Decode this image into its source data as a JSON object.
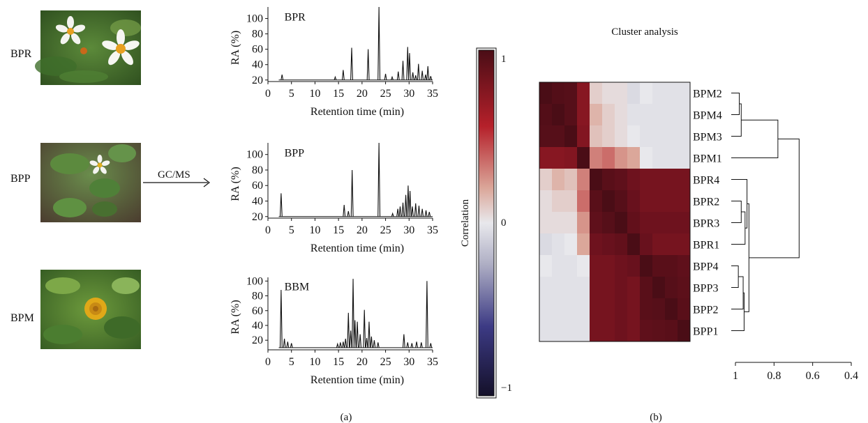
{
  "panel_a": {
    "label": "(a)",
    "samples": [
      {
        "name": "BPR",
        "photo": "white-daisy-flower-photo",
        "center_color": "#e8a020"
      },
      {
        "name": "BPP",
        "photo": "white-flower-leaves-photo",
        "center_color": "#e0b020"
      },
      {
        "name": "BPM",
        "photo": "yellow-flower-photo",
        "center_color": "#e0a818"
      }
    ],
    "arrow_label": "GC/MS"
  },
  "panel_b": {
    "label": "(b)",
    "title": "Cluster analysis",
    "colorbar_label": "Correlation",
    "colorbar_ticks": [
      "1",
      "0",
      "−1"
    ],
    "colors": {
      "high": "#5a0f1a",
      "mid": "#e8e8ec",
      "low": "#1b1535"
    }
  },
  "chart_data": [
    {
      "type": "line",
      "annotation": "BPR",
      "xlabel": "Retention time (min)",
      "ylabel": "RA (%)",
      "xlim": [
        0,
        35
      ],
      "ylim": [
        18,
        115
      ],
      "xticks": [
        0,
        5,
        10,
        15,
        20,
        25,
        30,
        35
      ],
      "yticks": [
        20,
        40,
        60,
        80,
        100
      ],
      "baseline": 20,
      "peaks": [
        {
          "x": 3.0,
          "y": 27
        },
        {
          "x": 14.3,
          "y": 24
        },
        {
          "x": 16.0,
          "y": 33
        },
        {
          "x": 17.8,
          "y": 62
        },
        {
          "x": 21.3,
          "y": 60
        },
        {
          "x": 23.6,
          "y": 115
        },
        {
          "x": 25.0,
          "y": 28
        },
        {
          "x": 26.4,
          "y": 24
        },
        {
          "x": 27.7,
          "y": 31
        },
        {
          "x": 28.7,
          "y": 45
        },
        {
          "x": 29.7,
          "y": 63
        },
        {
          "x": 30.1,
          "y": 55
        },
        {
          "x": 30.8,
          "y": 30
        },
        {
          "x": 31.4,
          "y": 26
        },
        {
          "x": 32.0,
          "y": 41
        },
        {
          "x": 32.8,
          "y": 32
        },
        {
          "x": 33.5,
          "y": 27
        },
        {
          "x": 34.0,
          "y": 38
        },
        {
          "x": 34.6,
          "y": 25
        }
      ]
    },
    {
      "type": "line",
      "annotation": "BPP",
      "xlabel": "Retention time (min)",
      "ylabel": "RA (%)",
      "xlim": [
        0,
        35
      ],
      "ylim": [
        18,
        115
      ],
      "xticks": [
        0,
        5,
        10,
        15,
        20,
        25,
        30,
        35
      ],
      "yticks": [
        20,
        40,
        60,
        80,
        100
      ],
      "baseline": 20,
      "peaks": [
        {
          "x": 2.8,
          "y": 50
        },
        {
          "x": 16.2,
          "y": 35
        },
        {
          "x": 17.1,
          "y": 27
        },
        {
          "x": 17.9,
          "y": 80
        },
        {
          "x": 23.6,
          "y": 115
        },
        {
          "x": 26.5,
          "y": 24
        },
        {
          "x": 27.6,
          "y": 30
        },
        {
          "x": 28.1,
          "y": 33
        },
        {
          "x": 28.7,
          "y": 38
        },
        {
          "x": 29.3,
          "y": 48
        },
        {
          "x": 29.8,
          "y": 60
        },
        {
          "x": 30.2,
          "y": 53
        },
        {
          "x": 30.7,
          "y": 33
        },
        {
          "x": 31.4,
          "y": 37
        },
        {
          "x": 32.1,
          "y": 34
        },
        {
          "x": 32.8,
          "y": 30
        },
        {
          "x": 33.6,
          "y": 28
        },
        {
          "x": 34.3,
          "y": 26
        }
      ]
    },
    {
      "type": "line",
      "annotation": "BBM",
      "xlabel": "Retention time (min)",
      "ylabel": "RA (%)",
      "xlim": [
        0,
        35
      ],
      "ylim": [
        7,
        105
      ],
      "xticks": [
        0,
        5,
        10,
        15,
        20,
        25,
        30,
        35
      ],
      "yticks": [
        20,
        40,
        60,
        80,
        100
      ],
      "baseline": 10,
      "peaks": [
        {
          "x": 2.8,
          "y": 88
        },
        {
          "x": 3.5,
          "y": 22
        },
        {
          "x": 4.2,
          "y": 18
        },
        {
          "x": 5.0,
          "y": 16
        },
        {
          "x": 14.8,
          "y": 15
        },
        {
          "x": 15.4,
          "y": 17
        },
        {
          "x": 16.0,
          "y": 18
        },
        {
          "x": 16.5,
          "y": 22
        },
        {
          "x": 17.1,
          "y": 57
        },
        {
          "x": 17.6,
          "y": 33
        },
        {
          "x": 18.1,
          "y": 103
        },
        {
          "x": 18.5,
          "y": 47
        },
        {
          "x": 19.0,
          "y": 45
        },
        {
          "x": 19.6,
          "y": 28
        },
        {
          "x": 20.5,
          "y": 61
        },
        {
          "x": 21.0,
          "y": 23
        },
        {
          "x": 21.5,
          "y": 45
        },
        {
          "x": 22.0,
          "y": 25
        },
        {
          "x": 22.6,
          "y": 20
        },
        {
          "x": 23.4,
          "y": 17
        },
        {
          "x": 28.9,
          "y": 28
        },
        {
          "x": 29.7,
          "y": 17
        },
        {
          "x": 30.6,
          "y": 16
        },
        {
          "x": 31.6,
          "y": 18
        },
        {
          "x": 32.6,
          "y": 17
        },
        {
          "x": 33.8,
          "y": 100
        },
        {
          "x": 34.6,
          "y": 16
        }
      ]
    },
    {
      "type": "heatmap",
      "rows": [
        "BPM2",
        "BPM4",
        "BPM3",
        "BPM1",
        "BPR4",
        "BPR2",
        "BPR3",
        "BPR1",
        "BPP4",
        "BPP3",
        "BPP2",
        "BPP1"
      ],
      "columns": [
        "BPM2",
        "BPM4",
        "BPM3",
        "BPM1",
        "BPR4",
        "BPR2",
        "BPR3",
        "BPR1",
        "BPP4",
        "BPP3",
        "BPP2",
        "BPP1"
      ],
      "values": [
        [
          1.0,
          0.97,
          0.96,
          0.78,
          0.1,
          0.05,
          0.05,
          -0.1,
          0.0,
          -0.05,
          -0.05,
          -0.05
        ],
        [
          0.97,
          1.0,
          0.96,
          0.78,
          0.2,
          0.1,
          0.05,
          -0.05,
          -0.05,
          -0.05,
          -0.05,
          -0.05
        ],
        [
          0.96,
          0.96,
          1.0,
          0.8,
          0.15,
          0.1,
          0.05,
          0.0,
          -0.05,
          -0.05,
          -0.05,
          -0.05
        ],
        [
          0.78,
          0.78,
          0.8,
          1.0,
          0.35,
          0.4,
          0.3,
          0.25,
          0.0,
          -0.05,
          -0.05,
          -0.05
        ],
        [
          0.1,
          0.2,
          0.15,
          0.35,
          1.0,
          0.95,
          0.93,
          0.88,
          0.85,
          0.85,
          0.85,
          0.85
        ],
        [
          0.05,
          0.1,
          0.1,
          0.4,
          0.95,
          1.0,
          0.96,
          0.9,
          0.85,
          0.85,
          0.85,
          0.85
        ],
        [
          0.05,
          0.05,
          0.05,
          0.3,
          0.93,
          0.96,
          1.0,
          0.92,
          0.88,
          0.88,
          0.88,
          0.88
        ],
        [
          -0.1,
          -0.05,
          0.0,
          0.25,
          0.88,
          0.9,
          0.92,
          1.0,
          0.9,
          0.85,
          0.85,
          0.85
        ],
        [
          0.0,
          -0.05,
          -0.05,
          0.0,
          0.85,
          0.85,
          0.88,
          0.9,
          1.0,
          0.95,
          0.95,
          0.93
        ],
        [
          -0.05,
          -0.05,
          -0.05,
          -0.05,
          0.85,
          0.85,
          0.88,
          0.85,
          0.95,
          1.0,
          0.96,
          0.94
        ],
        [
          -0.05,
          -0.05,
          -0.05,
          -0.05,
          0.85,
          0.85,
          0.88,
          0.85,
          0.95,
          0.96,
          1.0,
          0.95
        ],
        [
          -0.05,
          -0.05,
          -0.05,
          -0.05,
          0.85,
          0.85,
          0.88,
          0.85,
          0.93,
          0.94,
          0.95,
          1.0
        ]
      ],
      "dendrogram": {
        "axis_ticks": [
          1,
          0.8,
          0.6,
          0.4
        ],
        "axis_range": [
          1,
          0.4
        ],
        "merges": [
          {
            "left": "BPM2",
            "right": "BPM4",
            "height": 0.98
          },
          {
            "left": "BPM2+BPM4",
            "right": "BPM3",
            "height": 0.97
          },
          {
            "left": "BPM2+BPM4+BPM3",
            "right": "BPM1",
            "height": 0.78
          },
          {
            "left": "BPR2",
            "right": "BPR3",
            "height": 0.97
          },
          {
            "left": "BPP4",
            "right": "BPP3",
            "height": 0.985
          },
          {
            "left": "BPR2+BPR3",
            "right": "BPR1",
            "height": 0.95
          },
          {
            "left": "BPP4+BPP3",
            "right": "BPP2",
            "height": 0.96
          },
          {
            "left": "BPR4",
            "right": "BPR2+BPR3+BPR1",
            "height": 0.94
          },
          {
            "left": "BPP4+BPP3+BPP2",
            "right": "BPP1",
            "height": 0.955
          },
          {
            "left": "BPR-group",
            "right": "BPP-group",
            "height": 0.93
          },
          {
            "left": "BPM-group",
            "right": "BPR+BPP-group",
            "height": 0.67
          }
        ]
      }
    }
  ]
}
